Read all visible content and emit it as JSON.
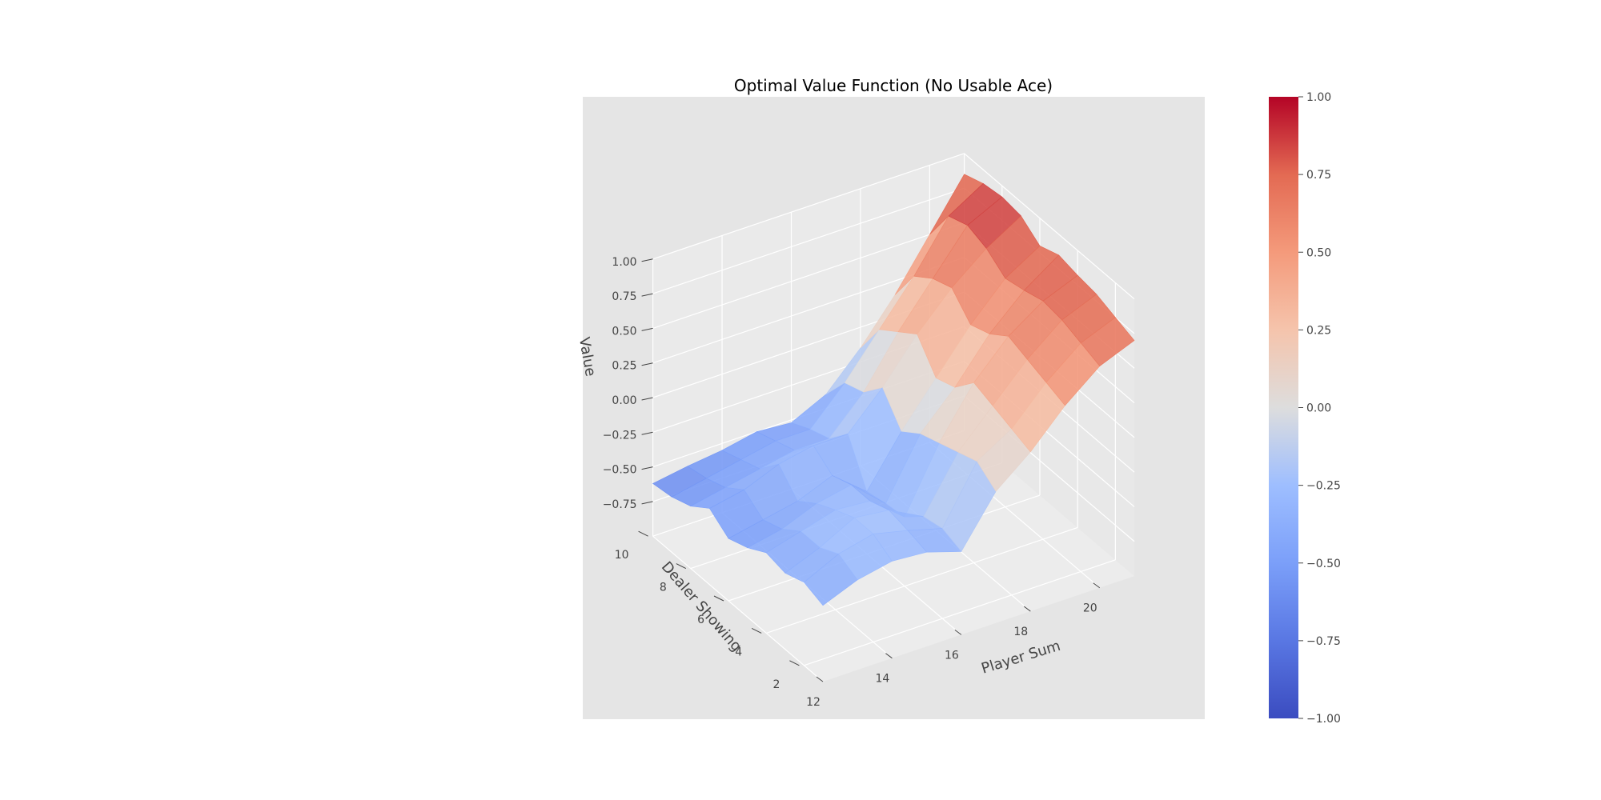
{
  "chart_data": {
    "type": "surface3d",
    "title": "Optimal Value Function (No Usable Ace)",
    "xlabel": "Player Sum",
    "ylabel": "Dealer Showing",
    "zlabel": "Value",
    "x": [
      12,
      13,
      14,
      15,
      16,
      17,
      18,
      19,
      20,
      21
    ],
    "y": [
      1,
      2,
      3,
      4,
      5,
      6,
      7,
      8,
      9,
      10
    ],
    "xticks": [
      "12",
      "14",
      "16",
      "18",
      "20"
    ],
    "yticks": [
      "2",
      "4",
      "6",
      "8",
      "10"
    ],
    "zticks": [
      "−0.75",
      "−0.50",
      "−0.25",
      "0.00",
      "0.25",
      "0.50",
      "0.75",
      "1.00"
    ],
    "zlim": [
      -0.75,
      1.0
    ],
    "colormap": "coolwarm",
    "colorbar": {
      "range": [
        -1.0,
        1.0
      ],
      "ticks": [
        "1.00",
        "0.75",
        "0.50",
        "0.25",
        "0.00",
        "−0.25",
        "−0.50",
        "−0.75",
        "−1.00"
      ]
    },
    "z": [
      [
        -0.45,
        -0.35,
        -0.3,
        -0.32,
        -0.4,
        -0.05,
        0.15,
        0.4,
        0.6,
        0.7
      ],
      [
        -0.4,
        -0.28,
        -0.22,
        -0.28,
        -0.35,
        0.05,
        0.2,
        0.45,
        0.65,
        0.75
      ],
      [
        -0.45,
        -0.35,
        -0.22,
        -0.25,
        -0.38,
        0.0,
        0.25,
        0.5,
        0.7,
        0.8
      ],
      [
        -0.42,
        -0.35,
        -0.28,
        -0.3,
        -0.5,
        -0.05,
        0.3,
        0.55,
        0.72,
        0.82
      ],
      [
        -0.5,
        -0.45,
        -0.35,
        -0.3,
        -0.52,
        -0.1,
        0.15,
        0.45,
        0.68,
        0.85
      ],
      [
        -0.55,
        -0.5,
        -0.45,
        -0.35,
        -0.55,
        -0.2,
        0.1,
        0.4,
        0.65,
        0.8
      ],
      [
        -0.45,
        -0.4,
        -0.3,
        -0.25,
        -0.25,
        0.0,
        0.3,
        0.55,
        0.75,
        0.9
      ],
      [
        -0.55,
        -0.5,
        -0.45,
        -0.4,
        -0.4,
        -0.15,
        0.2,
        0.5,
        0.8,
        0.92
      ],
      [
        -0.6,
        -0.55,
        -0.5,
        -0.45,
        -0.45,
        -0.2,
        0.1,
        0.4,
        0.75,
        0.9
      ],
      [
        -0.62,
        -0.58,
        -0.55,
        -0.5,
        -0.52,
        -0.4,
        -0.15,
        0.15,
        0.5,
        0.85
      ]
    ]
  }
}
